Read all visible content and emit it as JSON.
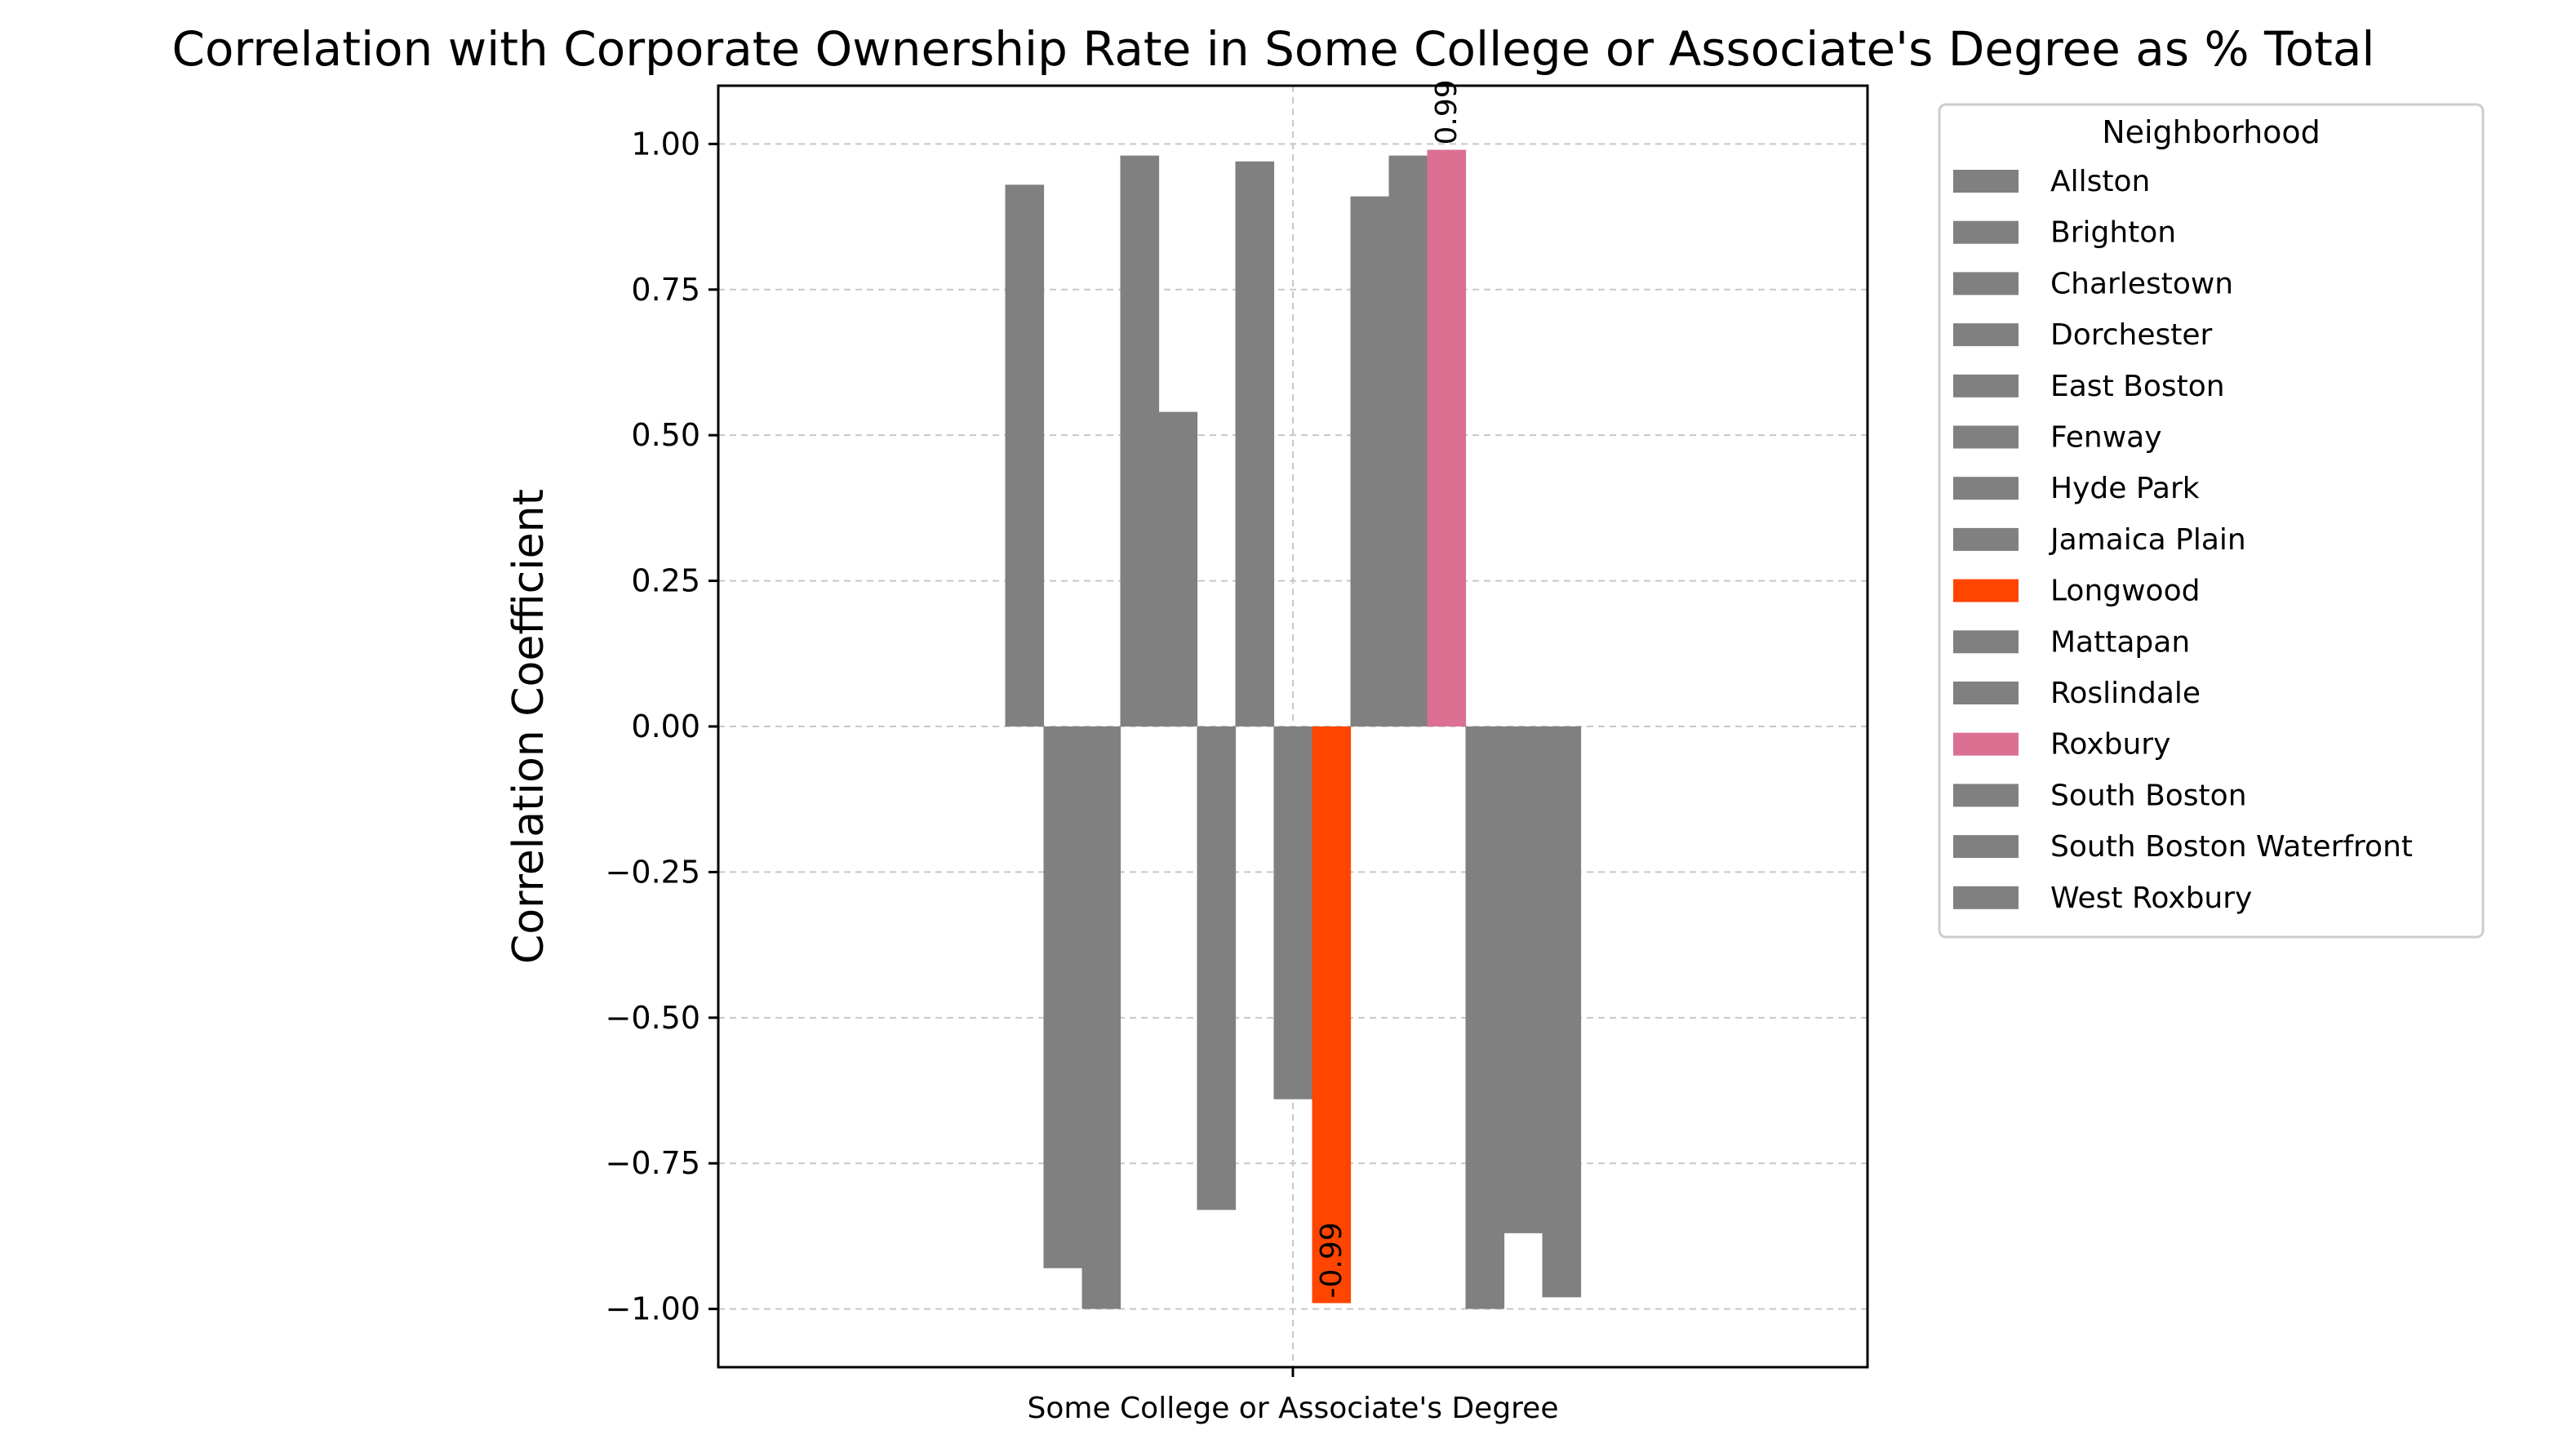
{
  "chart_data": {
    "type": "bar",
    "title": "Correlation with Corporate Ownership Rate in Some College or Associate's Degree as % Total",
    "xlabel": "",
    "ylabel": "Correlation Coefficient",
    "categories": [
      "Some College or Associate's Degree"
    ],
    "ylim": [
      -1.1,
      1.1
    ],
    "yticks": [
      -1.0,
      -0.75,
      -0.5,
      -0.25,
      0.0,
      0.25,
      0.5,
      0.75,
      1.0
    ],
    "ytick_labels": [
      "−1.00",
      "−0.75",
      "−0.50",
      "−0.25",
      "0.00",
      "0.25",
      "0.50",
      "0.75",
      "1.00"
    ],
    "grid": true,
    "legend_title": "Neighborhood",
    "legend_position": "outside-right",
    "series": [
      {
        "name": "Allston",
        "values": [
          0.93
        ],
        "color": "#808080"
      },
      {
        "name": "Brighton",
        "values": [
          -0.93
        ],
        "color": "#808080"
      },
      {
        "name": "Charlestown",
        "values": [
          -1.0
        ],
        "color": "#808080"
      },
      {
        "name": "Dorchester",
        "values": [
          0.98
        ],
        "color": "#808080"
      },
      {
        "name": "East Boston",
        "values": [
          0.54
        ],
        "color": "#808080"
      },
      {
        "name": "Fenway",
        "values": [
          -0.83
        ],
        "color": "#808080"
      },
      {
        "name": "Hyde Park",
        "values": [
          0.97
        ],
        "color": "#808080"
      },
      {
        "name": "Jamaica Plain",
        "values": [
          -0.64
        ],
        "color": "#808080"
      },
      {
        "name": "Longwood",
        "values": [
          -0.99
        ],
        "color": "#ff4500",
        "label": "-0.99"
      },
      {
        "name": "Mattapan",
        "values": [
          0.91
        ],
        "color": "#808080"
      },
      {
        "name": "Roslindale",
        "values": [
          0.98
        ],
        "color": "#808080"
      },
      {
        "name": "Roxbury",
        "values": [
          0.99
        ],
        "color": "#db7093",
        "label": "0.99"
      },
      {
        "name": "South Boston",
        "values": [
          -1.0
        ],
        "color": "#808080"
      },
      {
        "name": "South Boston Waterfront",
        "values": [
          -0.87
        ],
        "color": "#808080"
      },
      {
        "name": "West Roxbury",
        "values": [
          -0.98
        ],
        "color": "#808080"
      }
    ]
  }
}
